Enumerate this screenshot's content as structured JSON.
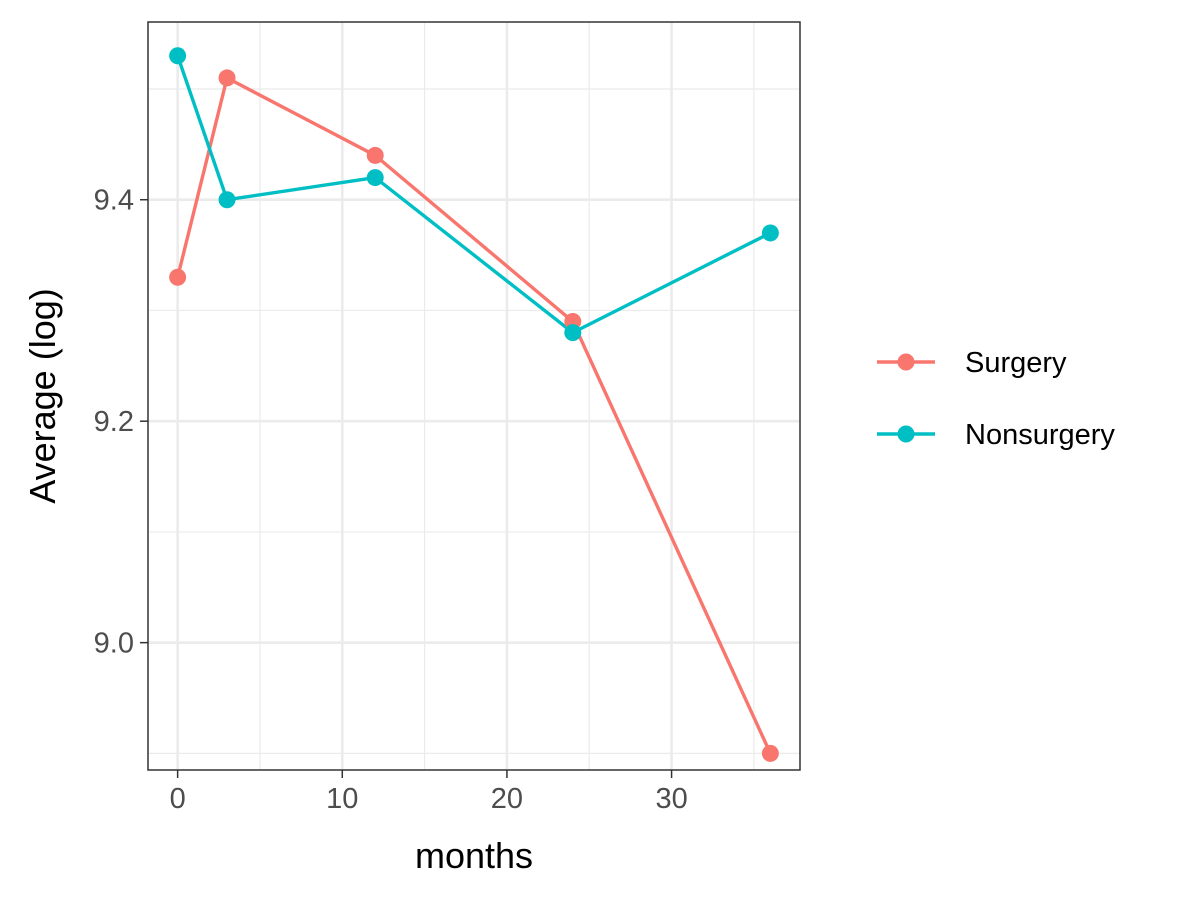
{
  "chart_data": {
    "type": "line",
    "title": "",
    "xlabel": "months",
    "ylabel": "Average (log)",
    "x": [
      0,
      3,
      12,
      24,
      36
    ],
    "xlim": [
      -1.8,
      37.8
    ],
    "ylim": [
      8.885,
      9.5605
    ],
    "xticks": [
      0,
      10,
      20,
      30
    ],
    "xtick_labels": [
      "0",
      "10",
      "20",
      "30"
    ],
    "xminor": [
      5,
      15,
      25,
      35
    ],
    "yticks": [
      9.0,
      9.2,
      9.4
    ],
    "ytick_labels": [
      "9.0",
      "9.2",
      "9.4"
    ],
    "yminor": [
      8.9,
      9.1,
      9.3,
      9.5
    ],
    "grid": true,
    "legend_position": "right",
    "series": [
      {
        "name": "Surgery",
        "color": "#F8766D",
        "values": [
          9.33,
          9.51,
          9.44,
          9.29,
          8.9
        ]
      },
      {
        "name": "Nonsurgery",
        "color": "#00BFC4",
        "values": [
          9.53,
          9.4,
          9.42,
          9.28,
          9.37
        ]
      }
    ]
  }
}
